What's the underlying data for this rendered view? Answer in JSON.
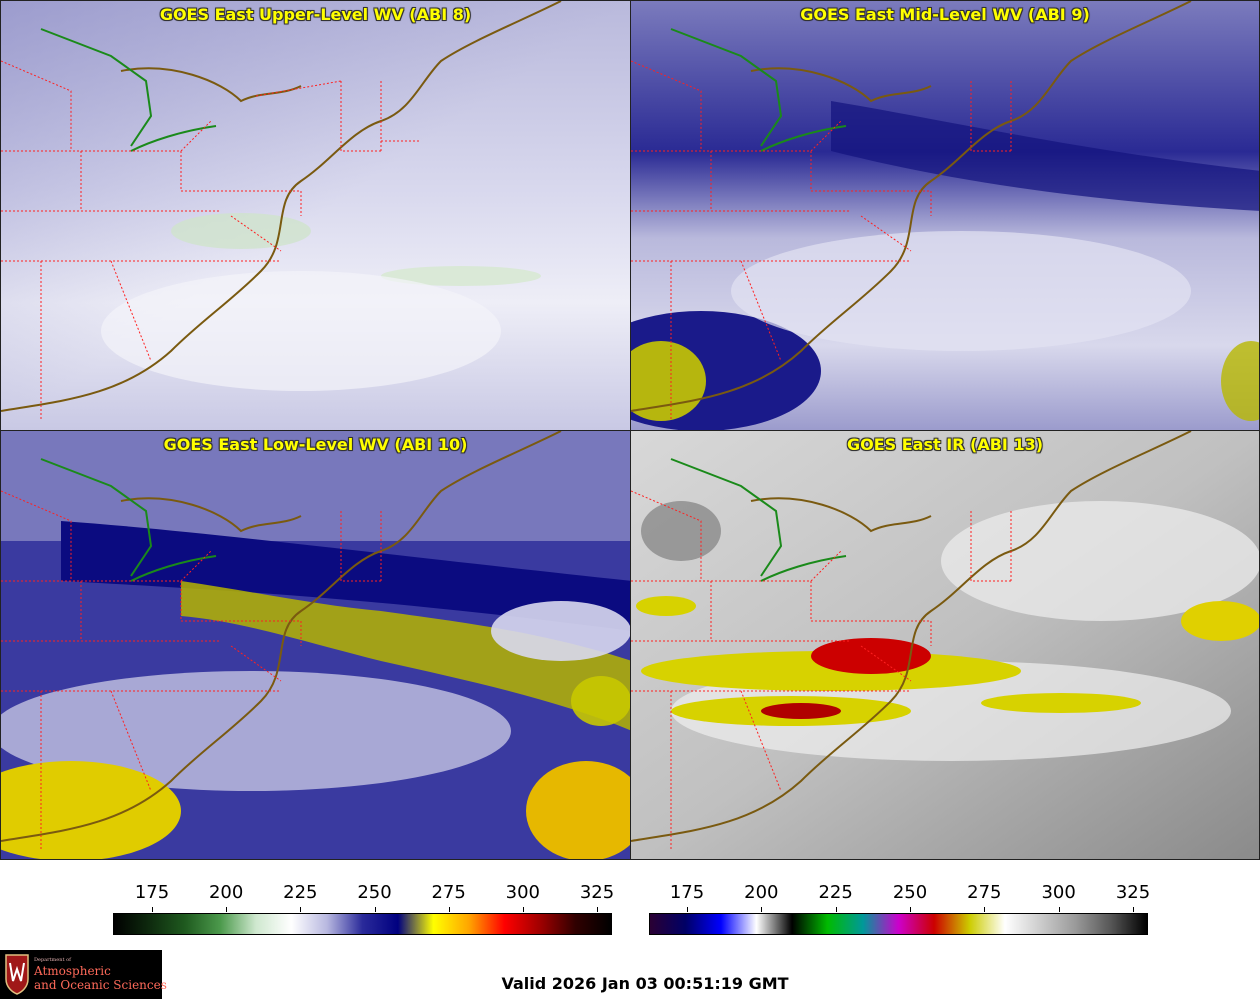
{
  "panels": [
    {
      "id": "upper",
      "title": "GOES East Upper-Level WV (ABI 8)"
    },
    {
      "id": "mid",
      "title": "GOES East Mid-Level WV (ABI 9)"
    },
    {
      "id": "low",
      "title": "GOES East Low-Level WV (ABI 10)"
    },
    {
      "id": "ir",
      "title": "GOES East IR (ABI 13)"
    }
  ],
  "colorbars": {
    "wv": {
      "ticks": [
        "175",
        "200",
        "225",
        "250",
        "275",
        "300",
        "325"
      ],
      "colors": [
        "#000000",
        "#0e2a0e",
        "#1f5a1f",
        "#4c9a4c",
        "#cfe8cf",
        "#ffffff",
        "#b8b8e0",
        "#2a2a9a",
        "#000080",
        "#ffff00",
        "#ffa500",
        "#ff0000",
        "#a00000",
        "#300000",
        "#000000"
      ]
    },
    "ir": {
      "ticks": [
        "175",
        "200",
        "225",
        "250",
        "275",
        "300",
        "325"
      ],
      "colors": [
        "#2a0033",
        "#000066",
        "#0000ff",
        "#ffffff",
        "#000000",
        "#00bb00",
        "#009999",
        "#cc00cc",
        "#cc0000",
        "#cccc00",
        "#ffffff",
        "#cccccc",
        "#999999",
        "#555555",
        "#000000"
      ]
    }
  },
  "logo": {
    "dept": "Department of",
    "line1": "Atmospheric",
    "line2": "and Oceanic Sciences"
  },
  "footer": {
    "valid": "Valid 2026 Jan 03 00:51:19 GMT"
  }
}
